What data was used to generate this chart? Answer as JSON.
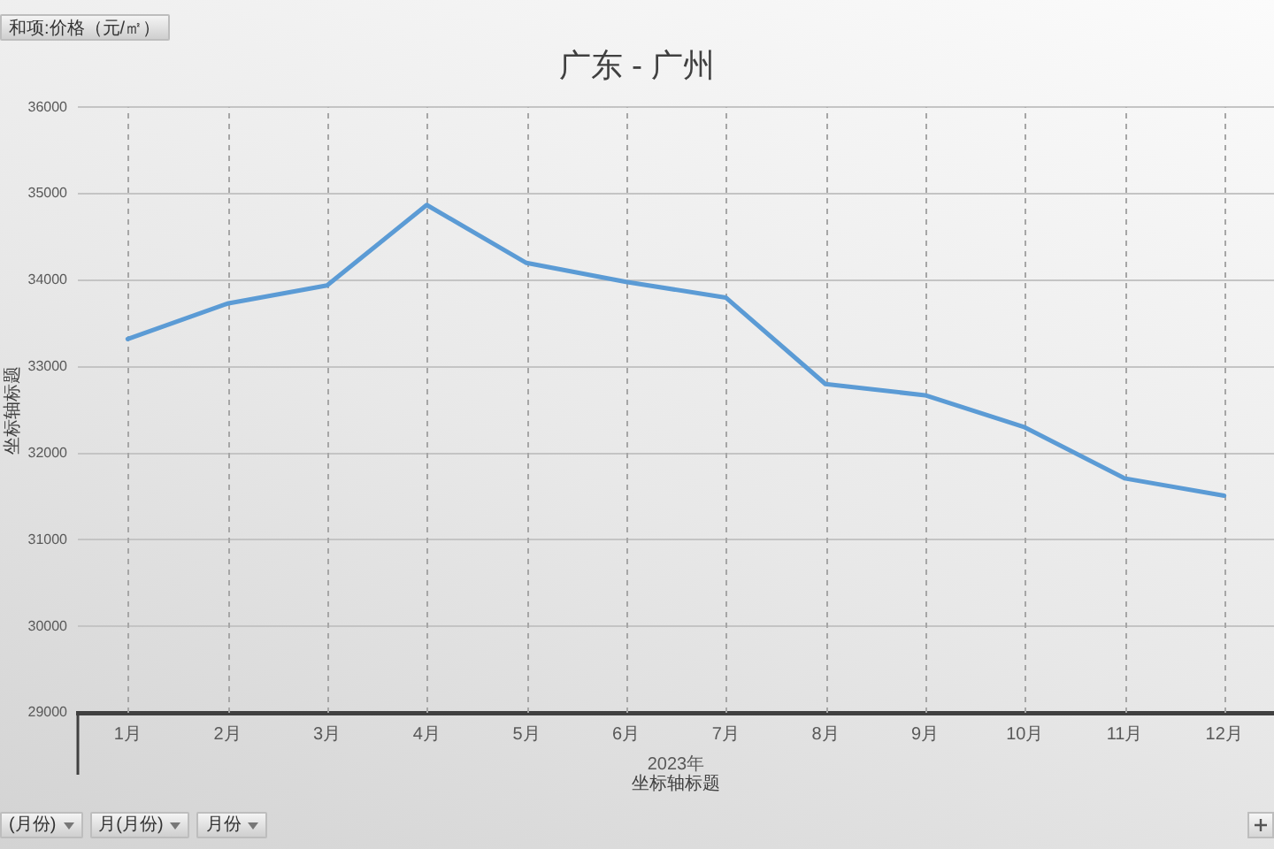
{
  "chart_data": {
    "type": "line",
    "title": "广东 - 广州",
    "xlabel": "坐标轴标题",
    "ylabel": "坐标轴标题",
    "categories": [
      "1月",
      "2月",
      "3月",
      "4月",
      "5月",
      "6月",
      "7月",
      "8月",
      "9月",
      "10月",
      "11月",
      "12月"
    ],
    "series": [
      {
        "color": "#5b9bd5",
        "values": [
          33320,
          33730,
          33940,
          34870,
          34200,
          33980,
          33800,
          32800,
          32670,
          32300,
          31710,
          31510
        ]
      }
    ],
    "ylim": [
      29000,
      36000
    ],
    "yticks": [
      29000,
      30000,
      31000,
      32000,
      33000,
      34000,
      35000,
      36000
    ],
    "grid": true,
    "legend": false,
    "marker": "none",
    "line_style": "solid",
    "annotations": [
      "2023年",
      "和项:价格（元/㎡）",
      "(月份)",
      "月(月份)",
      "月份"
    ]
  }
}
